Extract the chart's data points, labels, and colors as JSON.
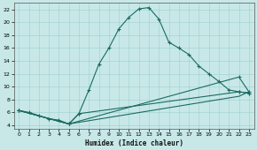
{
  "xlabel": "Humidex (Indice chaleur)",
  "bg_color": "#c8e8e8",
  "line_color": "#1a6b60",
  "grid_color": "#9ecece",
  "xlim": [
    -0.5,
    23.5
  ],
  "ylim": [
    3.5,
    23
  ],
  "xticks": [
    0,
    1,
    2,
    3,
    4,
    5,
    6,
    7,
    8,
    9,
    10,
    11,
    12,
    13,
    14,
    15,
    16,
    17,
    18,
    19,
    20,
    21,
    22,
    23
  ],
  "yticks": [
    4,
    6,
    8,
    10,
    12,
    14,
    16,
    18,
    20,
    22
  ],
  "curve_x": [
    0,
    1,
    2,
    3,
    4,
    5,
    6,
    7,
    8,
    9,
    10,
    11,
    12,
    13,
    14,
    15,
    16,
    17,
    18,
    19,
    20,
    21,
    22,
    23
  ],
  "curve_y": [
    6.3,
    6.0,
    5.5,
    5.0,
    4.8,
    4.2,
    5.8,
    9.5,
    13.5,
    16.0,
    19.0,
    20.8,
    22.1,
    22.3,
    20.5,
    16.9,
    16.0,
    15.0,
    13.2,
    12.0,
    10.8,
    9.5,
    9.2,
    9.0
  ],
  "line2_x": [
    0,
    5,
    6,
    22,
    23
  ],
  "line2_y": [
    6.3,
    4.2,
    5.8,
    9.2,
    9.0
  ],
  "line3_x": [
    0,
    5,
    22,
    23
  ],
  "line3_y": [
    6.3,
    4.2,
    11.5,
    9.2
  ],
  "line4_x": [
    0,
    5,
    22,
    23
  ],
  "line4_y": [
    6.3,
    4.2,
    8.5,
    9.2
  ]
}
